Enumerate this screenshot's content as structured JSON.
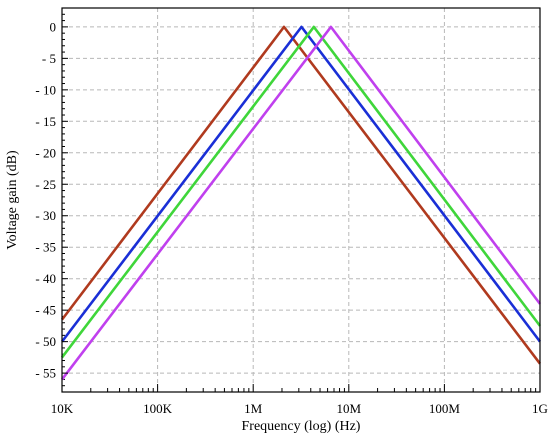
{
  "chart_data": {
    "type": "line",
    "title": "",
    "xlabel": "Frequency (log) (Hz)",
    "ylabel": "Voltage gain (dB)",
    "x_scale": "log",
    "xlim": [
      10000,
      1000000000
    ],
    "ylim": [
      -58,
      3
    ],
    "grid": true,
    "legend": "none",
    "x_ticks": [
      {
        "value": 10000,
        "label": "10K"
      },
      {
        "value": 100000,
        "label": "100K"
      },
      {
        "value": 1000000,
        "label": "1M"
      },
      {
        "value": 10000000,
        "label": "10M"
      },
      {
        "value": 100000000,
        "label": "100M"
      },
      {
        "value": 1000000000,
        "label": "1G"
      }
    ],
    "y_ticks": [
      {
        "value": 0,
        "label": "0"
      },
      {
        "value": -5,
        "label": "- 5"
      },
      {
        "value": -10,
        "label": "- 10"
      },
      {
        "value": -15,
        "label": "- 15"
      },
      {
        "value": -20,
        "label": "- 20"
      },
      {
        "value": -25,
        "label": "- 25"
      },
      {
        "value": -30,
        "label": "- 30"
      },
      {
        "value": -35,
        "label": "- 35"
      },
      {
        "value": -40,
        "label": "- 40"
      },
      {
        "value": -45,
        "label": "- 45"
      },
      {
        "value": -50,
        "label": "- 50"
      },
      {
        "value": -55,
        "label": "- 55"
      }
    ],
    "series": [
      {
        "color": "#b03a1e",
        "x": [
          10000,
          2100000,
          1000000000
        ],
        "y": [
          -46.5,
          0,
          -53.5
        ]
      },
      {
        "color": "#1a2fd6",
        "x": [
          10000,
          3200000,
          1000000000
        ],
        "y": [
          -50,
          0,
          -50
        ]
      },
      {
        "color": "#3fd63a",
        "x": [
          10000,
          4300000,
          1000000000
        ],
        "y": [
          -52.5,
          0,
          -47.5
        ]
      },
      {
        "color": "#c040ee",
        "x": [
          10000,
          6500000,
          1000000000
        ],
        "y": [
          -56,
          0,
          -44
        ]
      }
    ]
  }
}
